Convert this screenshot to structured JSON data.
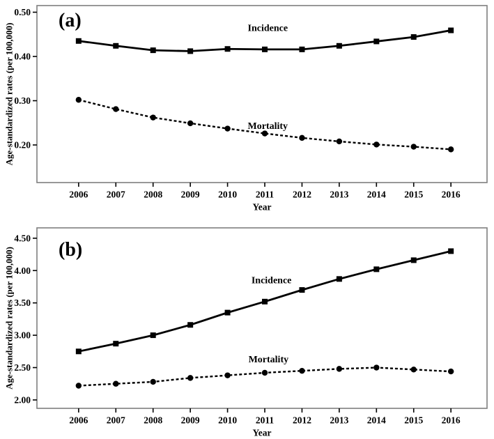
{
  "figure": {
    "background": "#ffffff",
    "line_color": "#000000",
    "box_border_color": "#7f7f7f",
    "panel_count": 2
  },
  "chart_data": [
    {
      "type": "line",
      "panel_label": "(a)",
      "title": "",
      "xlabel": "Year",
      "ylabel": "Age-standardized rates (per 100,000)",
      "x": [
        2006,
        2007,
        2008,
        2009,
        2010,
        2011,
        2012,
        2013,
        2014,
        2015,
        2016
      ],
      "series": [
        {
          "name": "Incidence",
          "marker": "square",
          "line_style": "solid",
          "values": [
            0.435,
            0.424,
            0.414,
            0.412,
            0.417,
            0.416,
            0.416,
            0.424,
            0.434,
            0.444,
            0.459
          ]
        },
        {
          "name": "Mortality",
          "marker": "circle",
          "line_style": "dashed",
          "values": [
            0.302,
            0.281,
            0.262,
            0.249,
            0.237,
            0.226,
            0.216,
            0.208,
            0.201,
            0.196,
            0.19
          ]
        }
      ],
      "yticks": [
        0.2,
        0.3,
        0.4,
        0.5
      ],
      "ytick_decimals": 2,
      "ylim": [
        0.115,
        0.515
      ],
      "xlim": [
        2004.88,
        2016.97
      ],
      "grid": false,
      "legend_position": "inline-annotations",
      "annotations": [
        {
          "text": "Incidence",
          "x": 2011.08,
          "y": 0.463
        },
        {
          "text": "Mortality",
          "x": 2011.08,
          "y": 0.242
        }
      ]
    },
    {
      "type": "line",
      "panel_label": "(b)",
      "title": "",
      "xlabel": "Year",
      "ylabel": "Age-standardized rates (per 100,000)",
      "x": [
        2006,
        2007,
        2008,
        2009,
        2010,
        2011,
        2012,
        2013,
        2014,
        2015,
        2016
      ],
      "series": [
        {
          "name": "Incidence",
          "marker": "square",
          "line_style": "solid",
          "values": [
            2.75,
            2.87,
            3.0,
            3.16,
            3.35,
            3.52,
            3.7,
            3.87,
            4.02,
            4.16,
            4.3
          ]
        },
        {
          "name": "Mortality",
          "marker": "circle",
          "line_style": "dashed",
          "values": [
            2.22,
            2.25,
            2.28,
            2.34,
            2.38,
            2.42,
            2.45,
            2.48,
            2.5,
            2.47,
            2.44
          ]
        }
      ],
      "yticks": [
        2.0,
        2.5,
        3.0,
        3.5,
        4.0,
        4.5
      ],
      "ytick_decimals": 2,
      "ylim": [
        1.87,
        4.66
      ],
      "xlim": [
        2004.88,
        2016.97
      ],
      "grid": false,
      "legend_position": "inline-annotations",
      "annotations": [
        {
          "text": "Incidence",
          "x": 2011.18,
          "y": 3.84
        },
        {
          "text": "Mortality",
          "x": 2011.1,
          "y": 2.62
        }
      ]
    }
  ]
}
